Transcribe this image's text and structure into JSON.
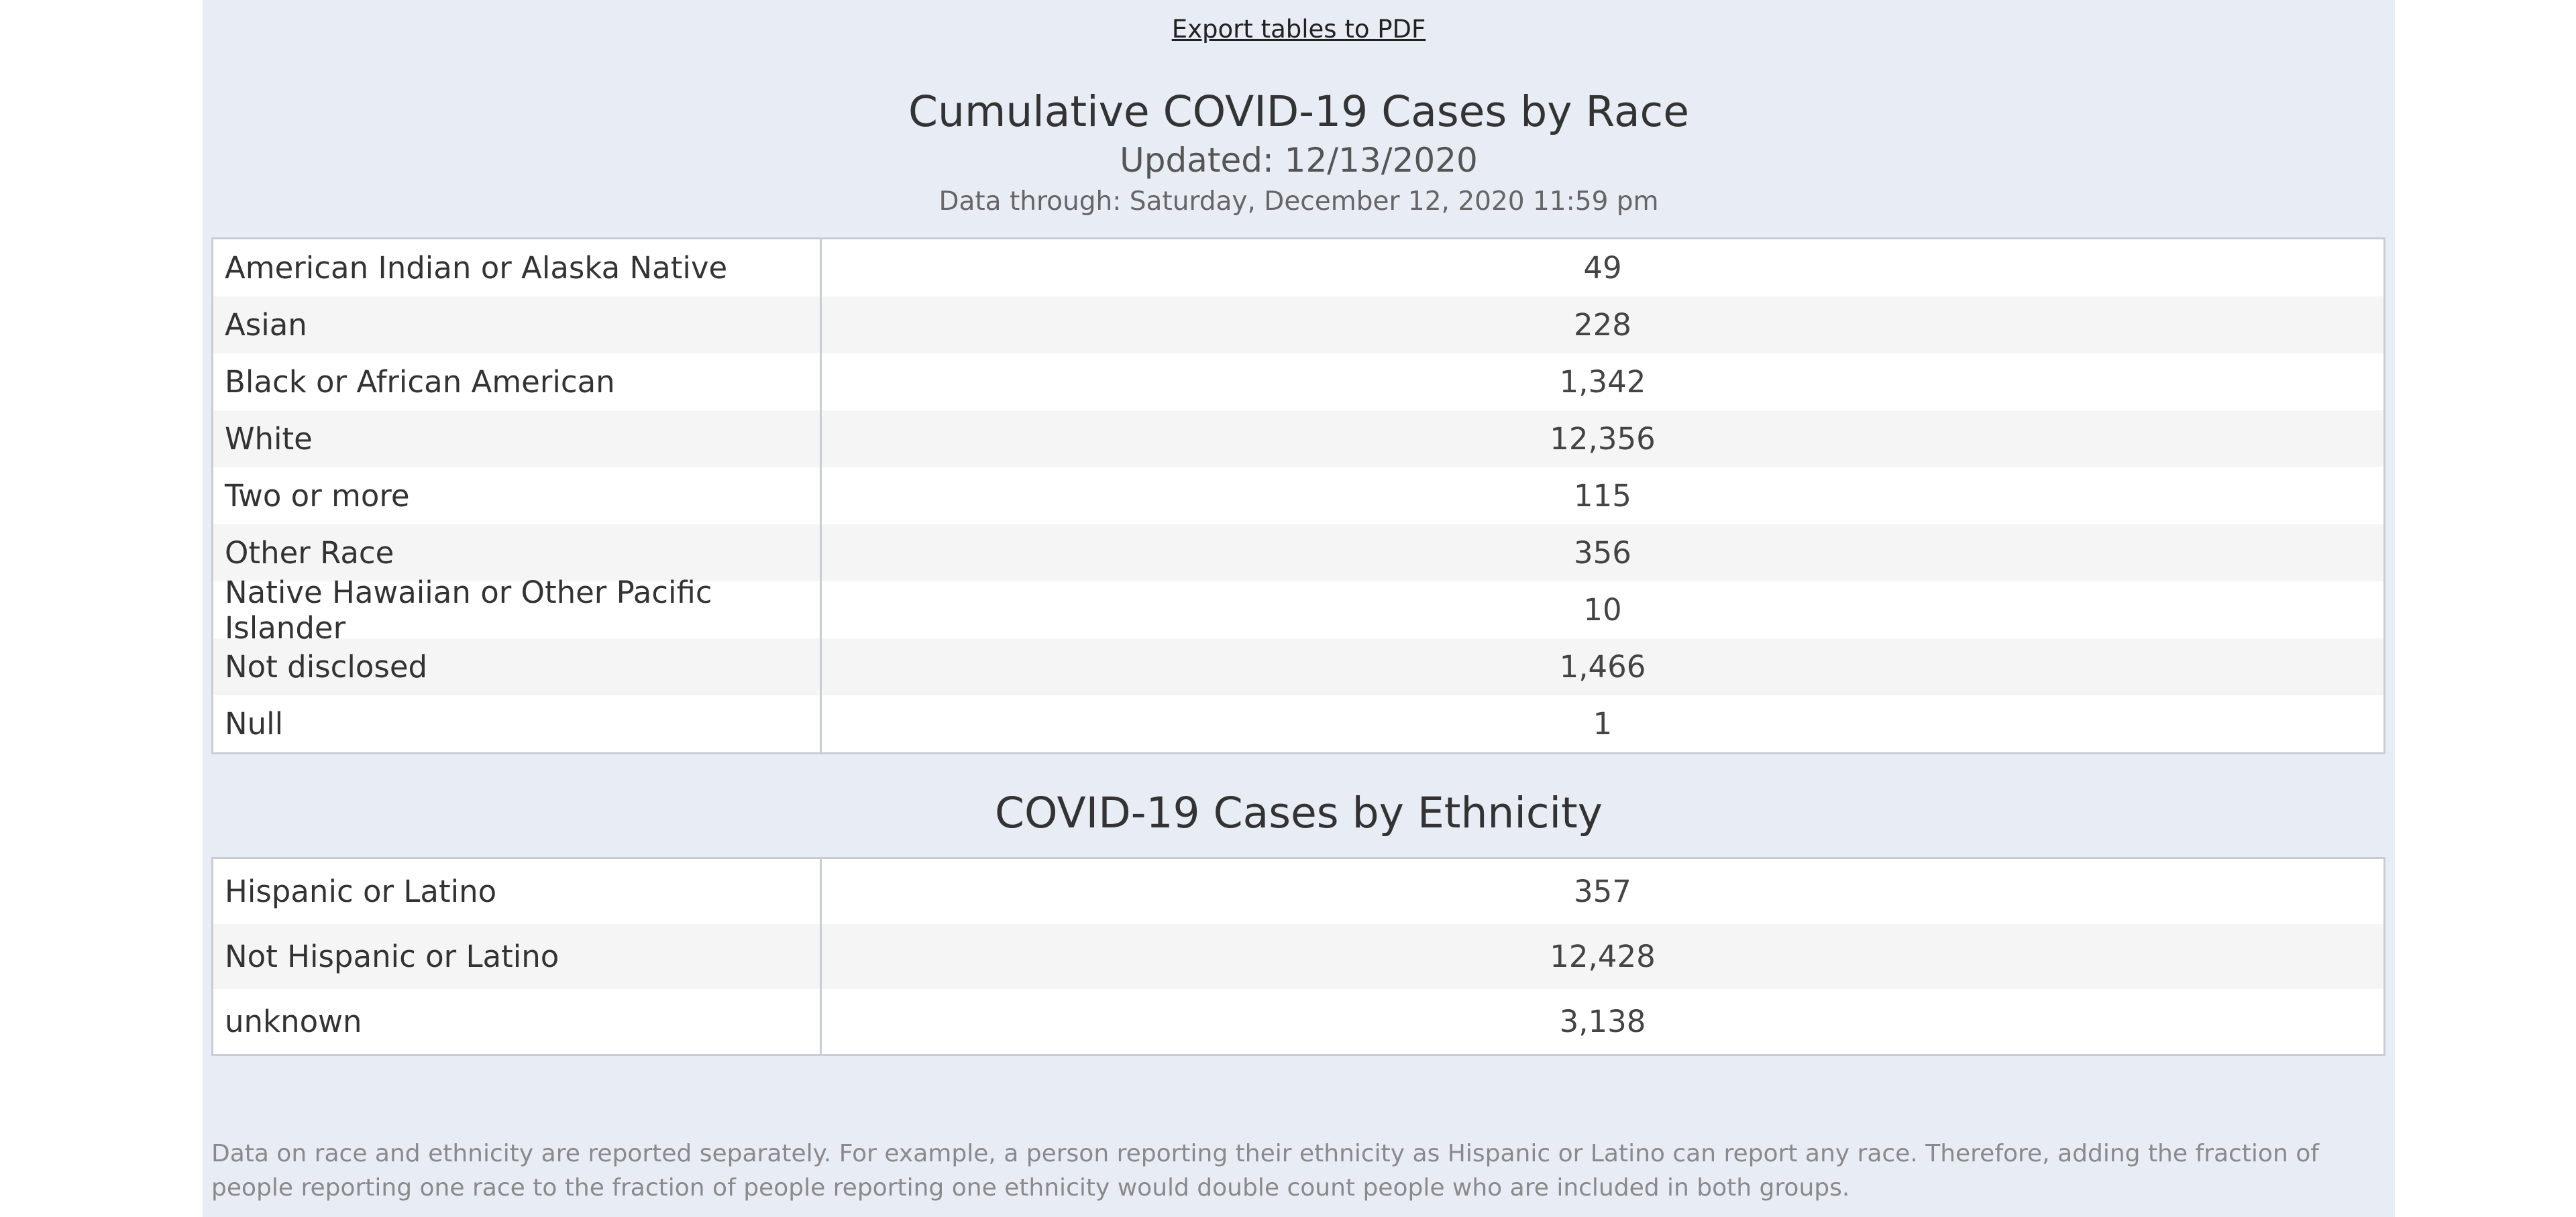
{
  "export_link": "Export tables to PDF",
  "race_section": {
    "title": "Cumulative COVID-19 Cases by Race",
    "updated": "Updated: 12/13/2020",
    "data_through": "Data through: Saturday, December 12, 2020 11:59 pm",
    "rows": [
      {
        "label": "American Indian or Alaska Native",
        "value": "49"
      },
      {
        "label": "Asian",
        "value": "228"
      },
      {
        "label": "Black or African American",
        "value": "1,342"
      },
      {
        "label": "White",
        "value": "12,356"
      },
      {
        "label": "Two or more",
        "value": "115"
      },
      {
        "label": "Other Race",
        "value": "356"
      },
      {
        "label": "Native Hawaiian or Other Pacific Islander",
        "value": "10"
      },
      {
        "label": "Not disclosed",
        "value": "1,466"
      },
      {
        "label": "Null",
        "value": "1"
      }
    ]
  },
  "ethnicity_section": {
    "title": "COVID-19 Cases by Ethnicity",
    "rows": [
      {
        "label": "Hispanic or Latino",
        "value": "357"
      },
      {
        "label": "Not Hispanic or Latino",
        "value": "12,428"
      },
      {
        "label": "unknown",
        "value": "3,138"
      }
    ]
  },
  "footer_note": "Data on race and ethnicity are reported separately. For example, a person reporting their ethnicity as Hispanic or Latino can report any race. Therefore, adding the fraction of people reporting one race to the fraction of people reporting one ethnicity would double count people who are included in both groups."
}
